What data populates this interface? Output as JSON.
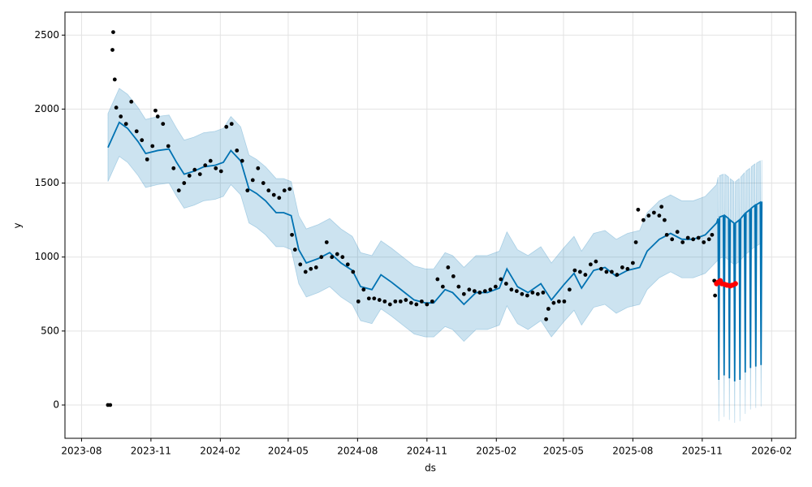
{
  "chart_data": {
    "type": "line",
    "x_label": "ds",
    "y_label": "y",
    "xlim": [
      "2023-07-10",
      "2026-03-05"
    ],
    "xticks": [
      {
        "value": "2023-08-01",
        "label": "2023-08"
      },
      {
        "value": "2023-11-01",
        "label": "2023-11"
      },
      {
        "value": "2024-02-01",
        "label": "2024-02"
      },
      {
        "value": "2024-05-01",
        "label": "2024-05"
      },
      {
        "value": "2024-08-01",
        "label": "2024-08"
      },
      {
        "value": "2024-11-01",
        "label": "2024-11"
      },
      {
        "value": "2025-02-01",
        "label": "2025-02"
      },
      {
        "value": "2025-05-01",
        "label": "2025-05"
      },
      {
        "value": "2025-08-01",
        "label": "2025-08"
      },
      {
        "value": "2025-11-01",
        "label": "2025-11"
      },
      {
        "value": "2026-02-01",
        "label": "2026-02"
      }
    ],
    "ylim": [
      -225,
      2655
    ],
    "yticks": [
      0,
      500,
      1000,
      1500,
      2000,
      2500
    ],
    "grid": true,
    "series": [
      {
        "kind": "forecast",
        "color": "#0072B2",
        "x": [
          "2023-09-05",
          "2023-09-20",
          "2023-10-01",
          "2023-10-15",
          "2023-10-25",
          "2023-11-10",
          "2023-11-25",
          "2023-12-05",
          "2023-12-15",
          "2023-12-28",
          "2024-01-10",
          "2024-01-25",
          "2024-02-05",
          "2024-02-15",
          "2024-02-28",
          "2024-03-10",
          "2024-03-20",
          "2024-04-01",
          "2024-04-15",
          "2024-04-25",
          "2024-05-05",
          "2024-05-15",
          "2024-05-25",
          "2024-06-10",
          "2024-06-25",
          "2024-07-10",
          "2024-07-25",
          "2024-08-05",
          "2024-08-20",
          "2024-09-01",
          "2024-09-15",
          "2024-09-30",
          "2024-10-15",
          "2024-10-30",
          "2024-11-10",
          "2024-11-25",
          "2024-12-05",
          "2024-12-20",
          "2025-01-05",
          "2025-01-20",
          "2025-02-05",
          "2025-02-15",
          "2025-03-01",
          "2025-03-15",
          "2025-04-01",
          "2025-04-15",
          "2025-05-01",
          "2025-05-15",
          "2025-05-25",
          "2025-06-10",
          "2025-06-25",
          "2025-07-10",
          "2025-07-25",
          "2025-08-10",
          "2025-08-20",
          "2025-09-05",
          "2025-09-20",
          "2025-10-05",
          "2025-10-20",
          "2025-11-05",
          "2025-11-20",
          "2025-11-22",
          "2025-11-23",
          "2025-11-24",
          "2025-11-29",
          "2025-11-30",
          "2025-12-01",
          "2025-12-06",
          "2025-12-07",
          "2025-12-08",
          "2025-12-13",
          "2025-12-14",
          "2025-12-15",
          "2025-12-20",
          "2025-12-21",
          "2025-12-22",
          "2025-12-27",
          "2025-12-28",
          "2025-12-29",
          "2026-01-03",
          "2026-01-04",
          "2026-01-05",
          "2026-01-10",
          "2026-01-11",
          "2026-01-12",
          "2026-01-17",
          "2026-01-18",
          "2026-01-19"
        ],
        "values": [
          1740,
          1910,
          1870,
          1780,
          1700,
          1720,
          1730,
          1640,
          1560,
          1580,
          1610,
          1620,
          1640,
          1720,
          1650,
          1460,
          1430,
          1380,
          1300,
          1300,
          1280,
          1050,
          960,
          990,
          1030,
          960,
          910,
          800,
          780,
          880,
          830,
          770,
          710,
          690,
          690,
          780,
          760,
          680,
          760,
          760,
          790,
          920,
          800,
          760,
          820,
          710,
          810,
          890,
          790,
          910,
          930,
          870,
          910,
          930,
          1040,
          1120,
          1160,
          1120,
          1120,
          1150,
          1230,
          1260,
          170,
          1270,
          1280,
          200,
          1280,
          1260,
          180,
          1250,
          1230,
          160,
          1230,
          1250,
          170,
          1260,
          1290,
          220,
          1300,
          1320,
          250,
          1330,
          1350,
          260,
          1355,
          1370,
          270,
          1375
        ],
        "lower": [
          1510,
          1680,
          1640,
          1550,
          1470,
          1490,
          1500,
          1410,
          1330,
          1350,
          1380,
          1390,
          1410,
          1490,
          1420,
          1230,
          1200,
          1150,
          1070,
          1070,
          1050,
          820,
          730,
          760,
          800,
          730,
          680,
          570,
          550,
          650,
          600,
          540,
          480,
          460,
          460,
          530,
          510,
          430,
          510,
          510,
          540,
          670,
          550,
          510,
          570,
          460,
          560,
          640,
          540,
          660,
          680,
          620,
          660,
          680,
          780,
          860,
          900,
          860,
          860,
          890,
          970,
          980,
          -110,
          990,
          1000,
          -80,
          1000,
          980,
          -100,
          970,
          950,
          -120,
          950,
          970,
          -110,
          980,
          1010,
          -60,
          1020,
          1040,
          -30,
          1050,
          1070,
          -20,
          1075,
          1090,
          -10,
          1095
        ],
        "upper": [
          1970,
          2140,
          2100,
          2010,
          1930,
          1950,
          1960,
          1870,
          1790,
          1810,
          1840,
          1850,
          1870,
          1950,
          1880,
          1690,
          1660,
          1610,
          1530,
          1530,
          1510,
          1280,
          1190,
          1220,
          1260,
          1190,
          1140,
          1030,
          1010,
          1110,
          1060,
          1000,
          940,
          920,
          920,
          1030,
          1010,
          930,
          1010,
          1010,
          1040,
          1170,
          1050,
          1010,
          1070,
          960,
          1060,
          1140,
          1040,
          1160,
          1180,
          1120,
          1160,
          1180,
          1300,
          1380,
          1420,
          1380,
          1380,
          1410,
          1490,
          1540,
          450,
          1550,
          1560,
          480,
          1560,
          1540,
          460,
          1530,
          1510,
          440,
          1510,
          1530,
          450,
          1540,
          1570,
          500,
          1580,
          1600,
          530,
          1610,
          1630,
          540,
          1635,
          1650,
          550,
          1655
        ]
      },
      {
        "kind": "scatter",
        "color": "#000000",
        "x": [
          "2023-09-05",
          "2023-09-08",
          "2023-09-11",
          "2023-09-12",
          "2023-09-14",
          "2023-09-16",
          "2023-09-22",
          "2023-09-29",
          "2023-10-06",
          "2023-10-13",
          "2023-10-20",
          "2023-10-27",
          "2023-11-03",
          "2023-11-07",
          "2023-11-10",
          "2023-11-17",
          "2023-11-24",
          "2023-12-01",
          "2023-12-08",
          "2023-12-15",
          "2023-12-22",
          "2023-12-29",
          "2024-01-05",
          "2024-01-12",
          "2024-01-19",
          "2024-01-26",
          "2024-02-02",
          "2024-02-09",
          "2024-02-16",
          "2024-02-23",
          "2024-03-01",
          "2024-03-08",
          "2024-03-15",
          "2024-03-22",
          "2024-03-29",
          "2024-04-05",
          "2024-04-12",
          "2024-04-19",
          "2024-04-26",
          "2024-05-03",
          "2024-05-06",
          "2024-05-10",
          "2024-05-17",
          "2024-05-24",
          "2024-05-31",
          "2024-06-07",
          "2024-06-14",
          "2024-06-21",
          "2024-06-28",
          "2024-07-05",
          "2024-07-12",
          "2024-07-19",
          "2024-07-26",
          "2024-08-02",
          "2024-08-09",
          "2024-08-16",
          "2024-08-23",
          "2024-08-30",
          "2024-09-06",
          "2024-09-13",
          "2024-09-20",
          "2024-09-27",
          "2024-10-04",
          "2024-10-11",
          "2024-10-18",
          "2024-10-25",
          "2024-11-01",
          "2024-11-08",
          "2024-11-15",
          "2024-11-22",
          "2024-11-29",
          "2024-12-06",
          "2024-12-13",
          "2024-12-20",
          "2024-12-27",
          "2025-01-03",
          "2025-01-10",
          "2025-01-17",
          "2025-01-24",
          "2025-01-31",
          "2025-02-07",
          "2025-02-14",
          "2025-02-21",
          "2025-02-28",
          "2025-03-07",
          "2025-03-14",
          "2025-03-21",
          "2025-03-28",
          "2025-04-04",
          "2025-04-08",
          "2025-04-11",
          "2025-04-18",
          "2025-04-25",
          "2025-05-02",
          "2025-05-09",
          "2025-05-16",
          "2025-05-23",
          "2025-05-30",
          "2025-06-06",
          "2025-06-13",
          "2025-06-20",
          "2025-06-27",
          "2025-07-04",
          "2025-07-11",
          "2025-07-18",
          "2025-07-25",
          "2025-08-01",
          "2025-08-05",
          "2025-08-08",
          "2025-08-15",
          "2025-08-22",
          "2025-08-29",
          "2025-09-05",
          "2025-09-08",
          "2025-09-12",
          "2025-09-15",
          "2025-09-22",
          "2025-09-29",
          "2025-10-06",
          "2025-10-13",
          "2025-10-20",
          "2025-10-27",
          "2025-11-03",
          "2025-11-10",
          "2025-11-14",
          "2025-11-17",
          "2025-11-18"
        ],
        "values": [
          0,
          0,
          2400,
          2520,
          2200,
          2010,
          1950,
          1900,
          2050,
          1850,
          1790,
          1660,
          1750,
          1990,
          1950,
          1900,
          1750,
          1600,
          1450,
          1500,
          1550,
          1590,
          1560,
          1620,
          1650,
          1600,
          1580,
          1880,
          1900,
          1720,
          1650,
          1450,
          1520,
          1600,
          1500,
          1450,
          1420,
          1400,
          1450,
          1460,
          1150,
          1050,
          950,
          900,
          920,
          930,
          1000,
          1100,
          1000,
          1020,
          1000,
          950,
          900,
          700,
          780,
          720,
          720,
          710,
          700,
          680,
          700,
          700,
          710,
          690,
          680,
          700,
          680,
          700,
          850,
          800,
          930,
          870,
          800,
          750,
          780,
          770,
          760,
          770,
          780,
          800,
          850,
          820,
          780,
          770,
          750,
          740,
          760,
          750,
          760,
          580,
          650,
          690,
          700,
          700,
          780,
          910,
          900,
          880,
          950,
          970,
          920,
          900,
          900,
          880,
          930,
          920,
          960,
          1100,
          1320,
          1250,
          1280,
          1300,
          1280,
          1340,
          1250,
          1150,
          1120,
          1170,
          1100,
          1130,
          1120,
          1130,
          1100,
          1120,
          1150,
          840,
          740
        ]
      },
      {
        "kind": "scatter",
        "color": "#ff0000",
        "x": [
          "2025-11-20",
          "2025-11-22",
          "2025-11-25",
          "2025-11-27",
          "2025-12-01",
          "2025-12-04",
          "2025-12-08",
          "2025-12-11",
          "2025-12-15"
        ],
        "values": [
          820,
          830,
          840,
          820,
          815,
          810,
          805,
          810,
          820
        ]
      }
    ]
  }
}
